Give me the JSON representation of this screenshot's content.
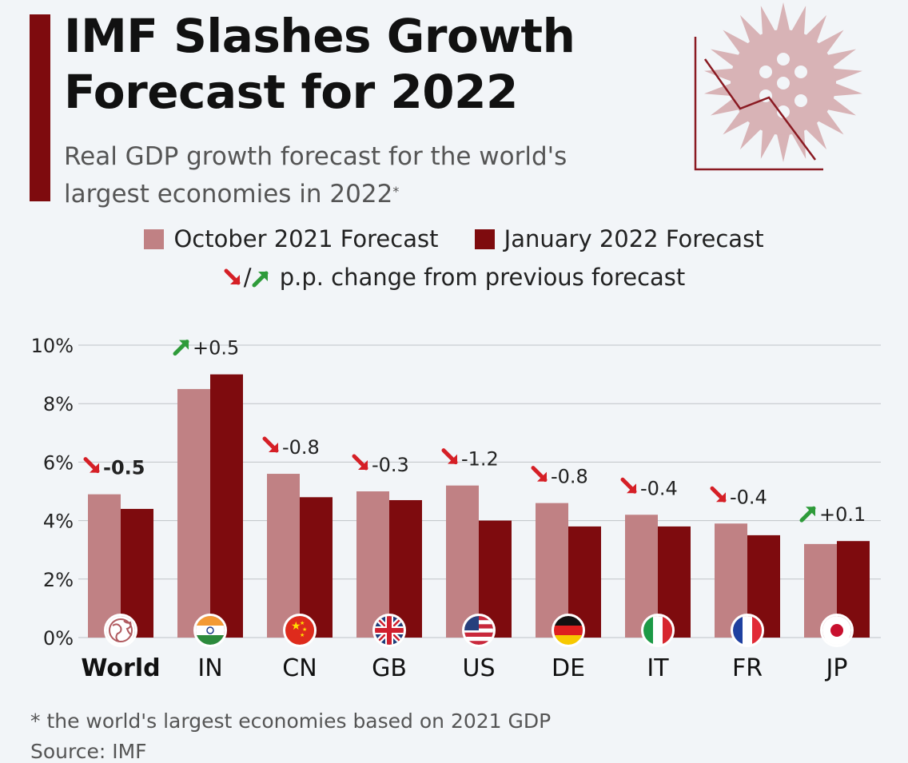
{
  "header": {
    "title_line1": "IMF Slashes Growth",
    "title_line2": "Forecast for 2022",
    "subtitle_line1": "Real GDP growth forecast for the world's",
    "subtitle_line2": "largest economies in 2022",
    "subtitle_mark": "*"
  },
  "legend": {
    "series1": "October 2021 Forecast",
    "series2": "January 2022 Forecast",
    "change_sep": "/",
    "change_label": "p.p. change from previous forecast"
  },
  "colors": {
    "october": "#c08184",
    "january": "#7e0b0e",
    "down_arrow": "#d51f26",
    "up_arrow": "#2e9b3a",
    "accent": "#7e0b0e",
    "deco": "#d8b3b6"
  },
  "icons": {
    "decoration": "virus-declining-chart-icon",
    "flags": [
      "globe-icon",
      "india-flag-icon",
      "china-flag-icon",
      "uk-flag-icon",
      "us-flag-icon",
      "germany-flag-icon",
      "italy-flag-icon",
      "france-flag-icon",
      "japan-flag-icon"
    ]
  },
  "chart_data": {
    "type": "bar",
    "categories": [
      "World",
      "IN",
      "CN",
      "GB",
      "US",
      "DE",
      "IT",
      "FR",
      "JP"
    ],
    "series": [
      {
        "name": "October 2021 Forecast",
        "values": [
          4.9,
          8.5,
          5.6,
          5.0,
          5.2,
          4.6,
          4.2,
          3.9,
          3.2
        ]
      },
      {
        "name": "January 2022 Forecast",
        "values": [
          4.4,
          9.0,
          4.8,
          4.7,
          4.0,
          3.8,
          3.8,
          3.5,
          3.3
        ]
      }
    ],
    "changes": [
      "-0.5",
      "+0.5",
      "-0.8",
      "-0.3",
      "-1.2",
      "-0.8",
      "-0.4",
      "-0.4",
      "+0.1"
    ],
    "y_ticks": [
      "0%",
      "2%",
      "4%",
      "6%",
      "8%",
      "10%"
    ],
    "ylim": [
      0,
      10
    ],
    "grid": true,
    "legend_position": "top-center"
  },
  "footer": {
    "note": "* the world's largest economies based on 2021 GDP",
    "source": "Source: IMF"
  }
}
